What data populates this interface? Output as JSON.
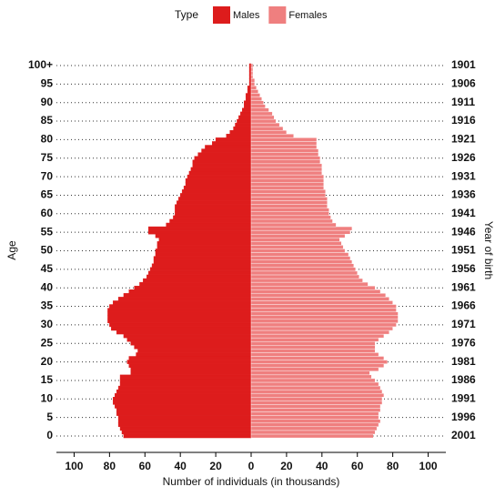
{
  "chart_data": {
    "type": "pyramid",
    "legend_title": "Type",
    "y_label": "Age",
    "y2_label": "Year of birth",
    "x_label": "Number of individuals (in thousands)",
    "categories": [
      "0",
      null,
      null,
      null,
      null,
      "5",
      null,
      null,
      null,
      null,
      "10",
      null,
      null,
      null,
      null,
      "15",
      null,
      null,
      null,
      null,
      "20",
      null,
      null,
      null,
      null,
      "25",
      null,
      null,
      null,
      null,
      "30",
      null,
      null,
      null,
      null,
      "35",
      null,
      null,
      null,
      null,
      "40",
      null,
      null,
      null,
      null,
      "45",
      null,
      null,
      null,
      null,
      "50",
      null,
      null,
      null,
      null,
      "55",
      null,
      null,
      null,
      null,
      "60",
      null,
      null,
      null,
      null,
      "65",
      null,
      null,
      null,
      null,
      "70",
      null,
      null,
      null,
      null,
      "75",
      null,
      null,
      null,
      null,
      "80",
      null,
      null,
      null,
      null,
      "85",
      null,
      null,
      null,
      null,
      "90",
      null,
      null,
      null,
      null,
      "95",
      null,
      null,
      null,
      null,
      "100+"
    ],
    "birth_years": [
      "2001",
      null,
      null,
      null,
      null,
      "1996",
      null,
      null,
      null,
      null,
      "1991",
      null,
      null,
      null,
      null,
      "1986",
      null,
      null,
      null,
      null,
      "1981",
      null,
      null,
      null,
      null,
      "1976",
      null,
      null,
      null,
      null,
      "1971",
      null,
      null,
      null,
      null,
      "1966",
      null,
      null,
      null,
      null,
      "1961",
      null,
      null,
      null,
      null,
      "1956",
      null,
      null,
      null,
      null,
      "1951",
      null,
      null,
      null,
      null,
      "1946",
      null,
      null,
      null,
      null,
      "1941",
      null,
      null,
      null,
      null,
      "1936",
      null,
      null,
      null,
      null,
      "1931",
      null,
      null,
      null,
      null,
      "1926",
      null,
      null,
      null,
      null,
      "1921",
      null,
      null,
      null,
      null,
      "1916",
      null,
      null,
      null,
      null,
      "1911",
      null,
      null,
      null,
      null,
      "1906",
      null,
      null,
      null,
      null,
      "1901"
    ],
    "series": [
      {
        "name": "Males",
        "color": "#dd1c1c",
        "side": "left",
        "values": [
          72,
          73,
          74,
          75,
          75,
          75,
          76,
          76,
          77,
          78,
          78,
          77,
          76,
          75,
          74,
          74,
          74,
          68,
          68,
          69,
          70,
          69,
          65,
          64,
          66,
          68,
          70,
          72,
          76,
          79,
          80,
          81,
          81,
          81,
          81,
          80,
          78,
          75,
          72,
          69,
          66,
          63,
          61,
          59,
          58,
          57,
          56,
          55,
          55,
          54,
          54,
          53,
          53,
          52,
          54,
          58,
          58,
          48,
          46,
          44,
          43,
          43,
          43,
          42,
          41,
          40,
          39,
          38,
          37,
          37,
          36,
          35,
          34,
          33,
          33,
          32,
          30,
          28,
          26,
          22,
          20,
          14,
          12,
          10,
          9,
          8,
          7,
          6,
          5,
          4,
          4,
          3,
          3,
          2,
          2,
          1,
          1,
          1,
          1,
          1,
          1
        ]
      },
      {
        "name": "Females",
        "color": "#ef7f7f",
        "side": "right",
        "values": [
          69,
          70,
          71,
          72,
          73,
          72,
          72,
          73,
          73,
          74,
          74,
          75,
          74,
          73,
          72,
          70,
          68,
          67,
          72,
          75,
          77,
          75,
          72,
          70,
          70,
          70,
          72,
          75,
          78,
          80,
          82,
          83,
          83,
          83,
          82,
          82,
          80,
          78,
          76,
          73,
          70,
          66,
          63,
          61,
          60,
          59,
          58,
          57,
          56,
          55,
          53,
          52,
          51,
          50,
          53,
          56,
          57,
          48,
          46,
          45,
          44,
          44,
          43,
          43,
          43,
          42,
          42,
          41,
          41,
          41,
          41,
          40,
          40,
          40,
          39,
          39,
          38,
          38,
          37,
          37,
          37,
          24,
          20,
          18,
          16,
          14,
          13,
          12,
          10,
          8,
          7,
          6,
          5,
          4,
          3,
          2,
          2,
          1,
          1,
          1,
          1
        ]
      }
    ],
    "xlim": [
      -110,
      110
    ],
    "xticks": [
      {
        "value": -100,
        "label": "100"
      },
      {
        "value": -80,
        "label": "80"
      },
      {
        "value": -60,
        "label": "60"
      },
      {
        "value": -40,
        "label": "40"
      },
      {
        "value": -20,
        "label": "20"
      },
      0,
      20,
      40,
      60,
      80,
      100
    ],
    "grid": true
  }
}
